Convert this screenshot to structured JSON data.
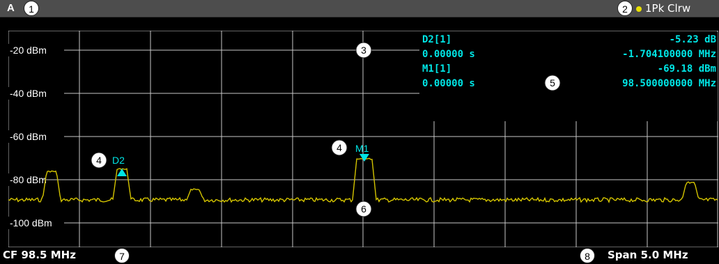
{
  "window": {
    "label": "A",
    "trace_label": "1Pk Clrw",
    "trace_color": "#e8e000"
  },
  "y_axis_labels": [
    "-20 dBm",
    "-40 dBm",
    "-60 dBm",
    "-80 dBm",
    "-100 dBm"
  ],
  "marker_table": {
    "d2_name": "D2[1]",
    "d2_time": "0.00000 s",
    "d2_level": "-5.23 dB",
    "d2_freq": "-1.704100000 MHz",
    "m1_name": "M1[1]",
    "m1_time": "0.00000 s",
    "m1_level": "-69.18 dBm",
    "m1_freq": "98.500000000 MHz"
  },
  "plot_markers": {
    "d2": "D2",
    "m1": "M1"
  },
  "callouts": {
    "c1": "1",
    "c2": "2",
    "c3": "3",
    "c4a": "4",
    "c4b": "4",
    "c5": "5",
    "c6": "6",
    "c7": "7",
    "c8": "8"
  },
  "status": {
    "cf": "CF 98.5 MHz",
    "span": "Span 5.0 MHz"
  },
  "colors": {
    "trace": "#d4c400",
    "marker": "#00e5e5",
    "grid": "#c8c8c8",
    "background": "#000000",
    "titlebar": "#4d4d4d"
  }
}
